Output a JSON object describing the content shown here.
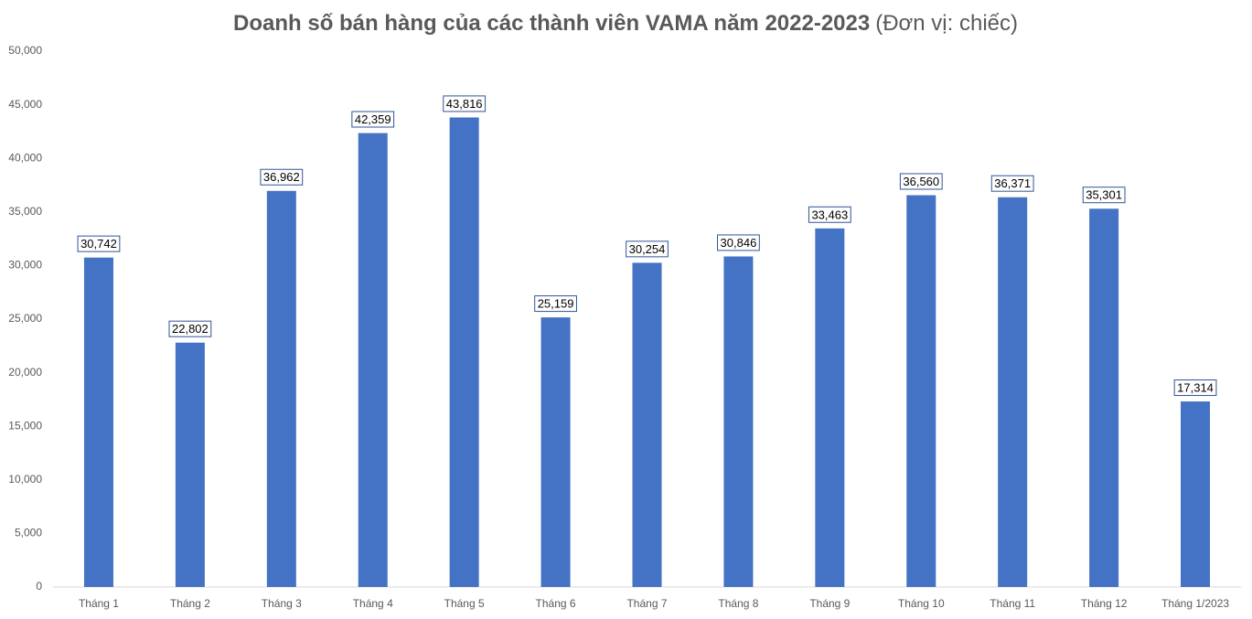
{
  "chart_data": {
    "type": "bar",
    "title": "Doanh số bán hàng của các thành viên VAMA năm 2022-2023",
    "unit": "(Đơn vị: chiếc)",
    "categories": [
      "Tháng 1",
      "Tháng 2",
      "Tháng 3",
      "Tháng 4",
      "Tháng 5",
      "Tháng 6",
      "Tháng 7",
      "Tháng 8",
      "Tháng 9",
      "Tháng 10",
      "Tháng 11",
      "Tháng 12",
      "Tháng 1/2023"
    ],
    "values": [
      30742,
      22802,
      36962,
      42359,
      43816,
      25159,
      30254,
      30846,
      33463,
      36560,
      36371,
      35301,
      17314
    ],
    "value_labels": [
      "30,742",
      "22,802",
      "36,962",
      "42,359",
      "43,816",
      "25,159",
      "30,254",
      "30,846",
      "33,463",
      "36,560",
      "36,371",
      "35,301",
      "17,314"
    ],
    "color": "#4472c4",
    "ylim": [
      0,
      50000
    ],
    "yticks": [
      0,
      {
        "value": 5000,
        "label": "5,000"
      },
      {
        "value": 10000,
        "label": "10,000"
      },
      {
        "value": 15000,
        "label": "15,000"
      },
      {
        "value": 20000,
        "label": "20,000"
      },
      {
        "value": 25000,
        "label": "25,000"
      },
      {
        "value": 30000,
        "label": "30,000"
      },
      {
        "value": 35000,
        "label": "35,000"
      },
      {
        "value": 40000,
        "label": "40,000"
      },
      {
        "value": 45000,
        "label": "45,000"
      },
      {
        "value": 50000,
        "label": "50,000"
      }
    ],
    "grid": false
  }
}
